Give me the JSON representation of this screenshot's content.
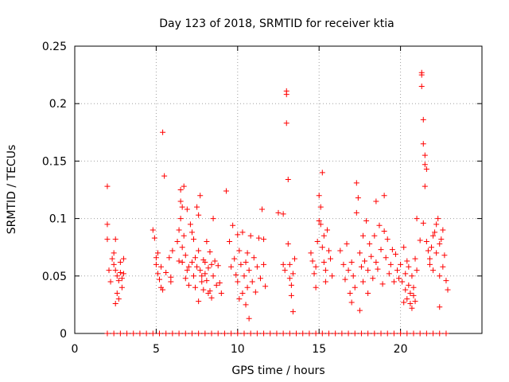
{
  "chart_data": {
    "type": "scatter",
    "title": "Day 123 of 2018, SRMTID for receiver ktia",
    "xlabel": "GPS time / hours",
    "ylabel": "SRMTID / TECUs",
    "xlim": [
      0,
      25
    ],
    "ylim": [
      0,
      0.25
    ],
    "xticks": [
      0,
      5,
      10,
      15,
      20
    ],
    "yticks": [
      0,
      0.05,
      0.1,
      0.15,
      0.2,
      0.25
    ],
    "xtick_labels": [
      "0",
      "5",
      "10",
      "15",
      "20"
    ],
    "ytick_labels": [
      "0",
      "0.05",
      "0.1",
      "0.15",
      "0.2",
      "0.25"
    ],
    "grid": true,
    "marker": "+",
    "series": [
      {
        "name": "SRMTID",
        "color": "#ff0000",
        "points": [
          [
            2.0,
            0.128
          ],
          [
            2.0,
            0.095
          ],
          [
            2.0,
            0.082
          ],
          [
            2.1,
            0.055
          ],
          [
            2.2,
            0.045
          ],
          [
            2.3,
            0.065
          ],
          [
            2.4,
            0.06
          ],
          [
            2.5,
            0.082
          ],
          [
            2.5,
            0.055
          ],
          [
            2.6,
            0.05
          ],
          [
            2.6,
            0.035
          ],
          [
            2.7,
            0.046
          ],
          [
            2.7,
            0.03
          ],
          [
            2.8,
            0.062
          ],
          [
            2.8,
            0.053
          ],
          [
            2.9,
            0.048
          ],
          [
            2.9,
            0.04
          ],
          [
            3.0,
            0.065
          ],
          [
            3.0,
            0.052
          ],
          [
            2.4,
            0.07
          ],
          [
            2.5,
            0.026
          ],
          [
            4.8,
            0.09
          ],
          [
            4.9,
            0.083
          ],
          [
            5.0,
            0.066
          ],
          [
            5.0,
            0.06
          ],
          [
            5.1,
            0.07
          ],
          [
            5.1,
            0.052
          ],
          [
            5.2,
            0.047
          ],
          [
            5.3,
            0.058
          ],
          [
            5.3,
            0.04
          ],
          [
            5.4,
            0.038
          ],
          [
            5.4,
            0.175
          ],
          [
            5.5,
            0.137
          ],
          [
            5.6,
            0.053
          ],
          [
            5.8,
            0.066
          ],
          [
            5.9,
            0.049
          ],
          [
            5.9,
            0.045
          ],
          [
            6.0,
            0.072
          ],
          [
            6.3,
            0.08
          ],
          [
            6.4,
            0.09
          ],
          [
            6.4,
            0.063
          ],
          [
            6.5,
            0.115
          ],
          [
            6.5,
            0.125
          ],
          [
            6.5,
            0.1
          ],
          [
            6.6,
            0.11
          ],
          [
            6.6,
            0.075
          ],
          [
            6.6,
            0.062
          ],
          [
            6.7,
            0.128
          ],
          [
            6.7,
            0.085
          ],
          [
            6.8,
            0.068
          ],
          [
            6.8,
            0.048
          ],
          [
            6.9,
            0.055
          ],
          [
            7.0,
            0.058
          ],
          [
            7.0,
            0.042
          ],
          [
            7.1,
            0.095
          ],
          [
            7.2,
            0.088
          ],
          [
            7.2,
            0.062
          ],
          [
            7.3,
            0.05
          ],
          [
            7.4,
            0.066
          ],
          [
            7.5,
            0.058
          ],
          [
            7.5,
            0.11
          ],
          [
            7.6,
            0.072
          ],
          [
            7.6,
            0.103
          ],
          [
            7.7,
            0.12
          ],
          [
            7.7,
            0.055
          ],
          [
            7.8,
            0.05
          ],
          [
            7.8,
            0.045
          ],
          [
            7.9,
            0.064
          ],
          [
            7.9,
            0.038
          ],
          [
            8.0,
            0.062
          ],
          [
            8.0,
            0.052
          ],
          [
            8.1,
            0.08
          ],
          [
            8.1,
            0.046
          ],
          [
            8.2,
            0.057
          ],
          [
            8.3,
            0.071
          ],
          [
            8.3,
            0.037
          ],
          [
            8.4,
            0.06
          ],
          [
            8.4,
            0.031
          ],
          [
            8.5,
            0.1
          ],
          [
            8.5,
            0.05
          ],
          [
            8.6,
            0.063
          ],
          [
            8.7,
            0.042
          ],
          [
            8.8,
            0.059
          ],
          [
            8.9,
            0.044
          ],
          [
            9.0,
            0.035
          ],
          [
            7.4,
            0.04
          ],
          [
            7.6,
            0.028
          ],
          [
            8.2,
            0.035
          ],
          [
            6.9,
            0.108
          ],
          [
            7.3,
            0.082
          ],
          [
            9.3,
            0.124
          ],
          [
            9.5,
            0.08
          ],
          [
            9.6,
            0.058
          ],
          [
            9.7,
            0.094
          ],
          [
            9.8,
            0.065
          ],
          [
            9.9,
            0.051
          ],
          [
            10.0,
            0.086
          ],
          [
            10.0,
            0.045
          ],
          [
            10.1,
            0.072
          ],
          [
            10.2,
            0.06
          ],
          [
            10.3,
            0.035
          ],
          [
            10.3,
            0.088
          ],
          [
            10.4,
            0.05
          ],
          [
            10.5,
            0.062
          ],
          [
            10.5,
            0.025
          ],
          [
            10.6,
            0.07
          ],
          [
            10.7,
            0.055
          ],
          [
            10.7,
            0.013
          ],
          [
            10.8,
            0.085
          ],
          [
            10.9,
            0.045
          ],
          [
            11.0,
            0.066
          ],
          [
            11.1,
            0.036
          ],
          [
            11.2,
            0.058
          ],
          [
            11.3,
            0.083
          ],
          [
            11.4,
            0.048
          ],
          [
            11.5,
            0.108
          ],
          [
            11.6,
            0.06
          ],
          [
            11.6,
            0.082
          ],
          [
            11.7,
            0.041
          ],
          [
            10.1,
            0.03
          ],
          [
            10.6,
            0.04
          ],
          [
            12.5,
            0.105
          ],
          [
            12.8,
            0.104
          ],
          [
            12.8,
            0.06
          ],
          [
            12.9,
            0.055
          ],
          [
            13.0,
            0.211
          ],
          [
            13.0,
            0.208
          ],
          [
            13.0,
            0.183
          ],
          [
            13.1,
            0.134
          ],
          [
            13.1,
            0.078
          ],
          [
            13.2,
            0.06
          ],
          [
            13.2,
            0.048
          ],
          [
            13.3,
            0.042
          ],
          [
            13.3,
            0.033
          ],
          [
            13.4,
            0.019
          ],
          [
            13.5,
            0.065
          ],
          [
            13.4,
            0.052
          ],
          [
            14.5,
            0.07
          ],
          [
            14.6,
            0.063
          ],
          [
            14.7,
            0.052
          ],
          [
            14.8,
            0.058
          ],
          [
            14.9,
            0.08
          ],
          [
            15.0,
            0.098
          ],
          [
            15.0,
            0.12
          ],
          [
            15.1,
            0.095
          ],
          [
            15.1,
            0.11
          ],
          [
            15.2,
            0.14
          ],
          [
            15.2,
            0.075
          ],
          [
            15.3,
            0.085
          ],
          [
            15.3,
            0.062
          ],
          [
            15.4,
            0.055
          ],
          [
            15.5,
            0.09
          ],
          [
            15.6,
            0.072
          ],
          [
            15.7,
            0.065
          ],
          [
            15.8,
            0.05
          ],
          [
            14.8,
            0.04
          ],
          [
            15.4,
            0.045
          ],
          [
            16.3,
            0.072
          ],
          [
            16.5,
            0.06
          ],
          [
            16.6,
            0.047
          ],
          [
            16.7,
            0.078
          ],
          [
            16.8,
            0.055
          ],
          [
            16.9,
            0.035
          ],
          [
            17.0,
            0.062
          ],
          [
            17.0,
            0.027
          ],
          [
            17.1,
            0.05
          ],
          [
            17.2,
            0.04
          ],
          [
            17.3,
            0.105
          ],
          [
            17.3,
            0.131
          ],
          [
            17.4,
            0.118
          ],
          [
            17.5,
            0.07
          ],
          [
            17.6,
            0.058
          ],
          [
            17.7,
            0.085
          ],
          [
            17.7,
            0.045
          ],
          [
            17.8,
            0.063
          ],
          [
            17.9,
            0.098
          ],
          [
            18.0,
            0.055
          ],
          [
            18.1,
            0.078
          ],
          [
            18.2,
            0.067
          ],
          [
            18.3,
            0.048
          ],
          [
            18.4,
            0.085
          ],
          [
            18.5,
            0.062
          ],
          [
            18.5,
            0.115
          ],
          [
            18.6,
            0.056
          ],
          [
            18.7,
            0.094
          ],
          [
            18.8,
            0.073
          ],
          [
            18.9,
            0.043
          ],
          [
            19.0,
            0.12
          ],
          [
            19.0,
            0.089
          ],
          [
            19.1,
            0.066
          ],
          [
            19.2,
            0.082
          ],
          [
            19.3,
            0.052
          ],
          [
            19.4,
            0.06
          ],
          [
            19.5,
            0.073
          ],
          [
            19.6,
            0.045
          ],
          [
            19.7,
            0.069
          ],
          [
            18.0,
            0.035
          ],
          [
            17.5,
            0.02
          ],
          [
            19.8,
            0.055
          ],
          [
            19.9,
            0.048
          ],
          [
            20.0,
            0.06
          ],
          [
            20.1,
            0.045
          ],
          [
            20.2,
            0.075
          ],
          [
            20.3,
            0.038
          ],
          [
            20.3,
            0.052
          ],
          [
            20.4,
            0.03
          ],
          [
            20.5,
            0.058
          ],
          [
            20.5,
            0.042
          ],
          [
            20.6,
            0.035
          ],
          [
            20.6,
            0.026
          ],
          [
            20.7,
            0.05
          ],
          [
            20.7,
            0.022
          ],
          [
            20.8,
            0.04
          ],
          [
            20.8,
            0.033
          ],
          [
            20.9,
            0.065
          ],
          [
            20.9,
            0.028
          ],
          [
            21.0,
            0.055
          ],
          [
            21.0,
            0.1
          ],
          [
            20.2,
            0.027
          ],
          [
            20.4,
            0.063
          ],
          [
            21.3,
            0.227
          ],
          [
            21.3,
            0.225
          ],
          [
            21.3,
            0.215
          ],
          [
            21.4,
            0.186
          ],
          [
            21.4,
            0.165
          ],
          [
            21.5,
            0.155
          ],
          [
            21.5,
            0.147
          ],
          [
            21.6,
            0.143
          ],
          [
            21.5,
            0.128
          ],
          [
            21.4,
            0.096
          ],
          [
            21.6,
            0.08
          ],
          [
            21.7,
            0.072
          ],
          [
            21.8,
            0.065
          ],
          [
            21.8,
            0.06
          ],
          [
            21.9,
            0.075
          ],
          [
            22.0,
            0.085
          ],
          [
            22.0,
            0.055
          ],
          [
            22.1,
            0.088
          ],
          [
            22.2,
            0.095
          ],
          [
            22.2,
            0.07
          ],
          [
            22.3,
            0.1
          ],
          [
            22.4,
            0.078
          ],
          [
            22.4,
            0.05
          ],
          [
            22.5,
            0.082
          ],
          [
            22.6,
            0.058
          ],
          [
            22.6,
            0.09
          ],
          [
            22.7,
            0.068
          ],
          [
            22.8,
            0.046
          ],
          [
            22.9,
            0.038
          ],
          [
            22.4,
            0.023
          ],
          [
            21.2,
            0.081
          ],
          [
            2.0,
            0.0
          ],
          [
            2.4,
            0.0
          ],
          [
            2.8,
            0.0
          ],
          [
            3.2,
            0.0
          ],
          [
            3.6,
            0.0
          ],
          [
            4.0,
            0.0
          ],
          [
            4.4,
            0.0
          ],
          [
            4.8,
            0.0
          ],
          [
            5.2,
            0.0
          ],
          [
            5.6,
            0.0
          ],
          [
            6.0,
            0.0
          ],
          [
            6.4,
            0.0
          ],
          [
            6.8,
            0.0
          ],
          [
            7.2,
            0.0
          ],
          [
            7.6,
            0.0
          ],
          [
            8.0,
            0.0
          ],
          [
            8.4,
            0.0
          ],
          [
            8.8,
            0.0
          ],
          [
            9.2,
            0.0
          ],
          [
            9.6,
            0.0
          ],
          [
            10.0,
            0.0
          ],
          [
            10.4,
            0.0
          ],
          [
            10.8,
            0.0
          ],
          [
            11.2,
            0.0
          ],
          [
            11.6,
            0.0
          ],
          [
            12.0,
            0.0
          ],
          [
            12.4,
            0.0
          ],
          [
            12.8,
            0.0
          ],
          [
            13.2,
            0.0
          ],
          [
            13.6,
            0.0
          ],
          [
            14.0,
            0.0
          ],
          [
            14.4,
            0.0
          ],
          [
            14.8,
            0.0
          ],
          [
            15.2,
            0.0
          ],
          [
            15.6,
            0.0
          ],
          [
            16.0,
            0.0
          ],
          [
            16.4,
            0.0
          ],
          [
            16.8,
            0.0
          ],
          [
            17.2,
            0.0
          ],
          [
            17.6,
            0.0
          ],
          [
            18.0,
            0.0
          ],
          [
            18.4,
            0.0
          ],
          [
            18.8,
            0.0
          ],
          [
            19.2,
            0.0
          ],
          [
            19.6,
            0.0
          ],
          [
            20.0,
            0.0
          ],
          [
            20.4,
            0.0
          ],
          [
            20.8,
            0.0
          ],
          [
            21.2,
            0.0
          ],
          [
            21.6,
            0.0
          ],
          [
            22.0,
            0.0
          ],
          [
            22.4,
            0.0
          ],
          [
            22.8,
            0.0
          ]
        ]
      }
    ]
  }
}
